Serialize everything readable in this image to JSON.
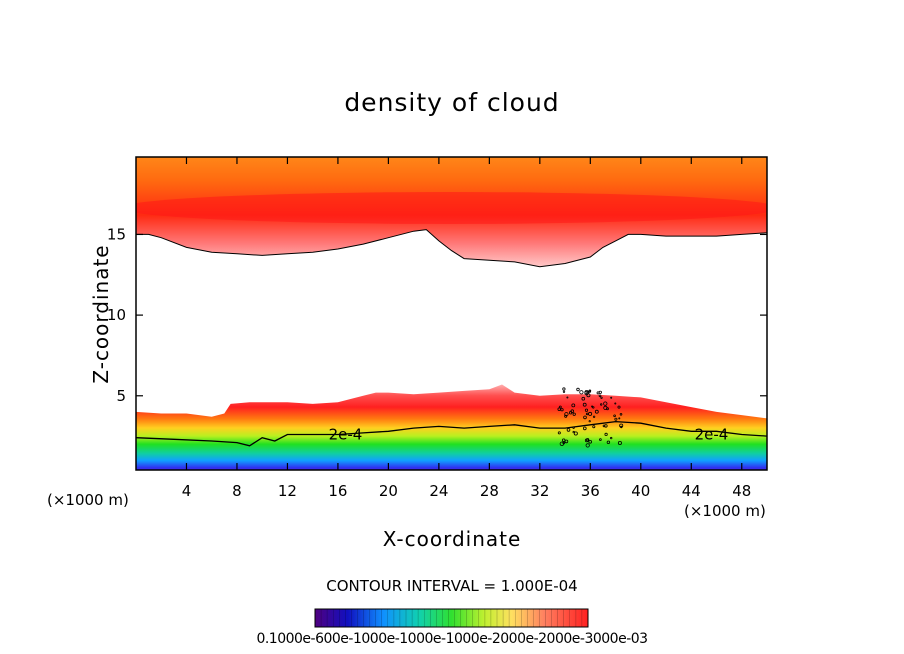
{
  "chart_data": {
    "type": "heatmap",
    "title": "density of cloud",
    "xlabel": "X-coordinate",
    "ylabel": "Z-coordinate",
    "x_unit_left": "(×1000 m)",
    "x_unit_right": "(×1000 m)",
    "x_ticks": [
      4,
      8,
      12,
      16,
      20,
      24,
      28,
      32,
      36,
      40,
      44,
      48
    ],
    "y_ticks": [
      5,
      10,
      15
    ],
    "xlim": [
      0,
      50
    ],
    "ylim": [
      0.4,
      19.8
    ],
    "contour_labels": [
      {
        "text": "2e-4",
        "x": 16.6,
        "z": 2.6
      },
      {
        "text": "2e-4",
        "x": 45.6,
        "z": 2.6
      }
    ],
    "contour_interval": "CONTOUR INTERVAL = 1.000E-04",
    "colorbar_label": "0.1000e-600e-1000e-1000e-1000e-2000e-2000e-3000e-03",
    "upper_layer_base": [
      [
        0,
        15.0
      ],
      [
        1,
        15.0
      ],
      [
        2,
        14.8
      ],
      [
        4,
        14.2
      ],
      [
        6,
        13.9
      ],
      [
        8,
        13.8
      ],
      [
        10,
        13.7
      ],
      [
        12,
        13.8
      ],
      [
        14,
        13.9
      ],
      [
        16,
        14.1
      ],
      [
        18,
        14.4
      ],
      [
        20,
        14.8
      ],
      [
        22,
        15.2
      ],
      [
        23,
        15.3
      ],
      [
        24,
        14.6
      ],
      [
        25,
        14.0
      ],
      [
        26,
        13.5
      ],
      [
        28,
        13.4
      ],
      [
        30,
        13.3
      ],
      [
        32,
        13.0
      ],
      [
        34,
        13.2
      ],
      [
        36,
        13.6
      ],
      [
        37,
        14.2
      ],
      [
        38,
        14.6
      ],
      [
        39,
        15.0
      ],
      [
        40,
        15.0
      ],
      [
        42,
        14.9
      ],
      [
        44,
        14.9
      ],
      [
        46,
        14.9
      ],
      [
        48,
        15.0
      ],
      [
        50,
        15.1
      ]
    ],
    "lower_layer_top": [
      [
        0,
        4.0
      ],
      [
        2,
        3.9
      ],
      [
        4,
        3.9
      ],
      [
        6,
        3.7
      ],
      [
        7,
        3.9
      ],
      [
        7.5,
        4.5
      ],
      [
        9,
        4.6
      ],
      [
        10,
        4.6
      ],
      [
        12,
        4.6
      ],
      [
        14,
        4.5
      ],
      [
        16,
        4.6
      ],
      [
        18,
        5.0
      ],
      [
        19,
        5.2
      ],
      [
        20,
        5.2
      ],
      [
        22,
        5.1
      ],
      [
        24,
        5.2
      ],
      [
        26,
        5.3
      ],
      [
        28,
        5.4
      ],
      [
        29,
        5.7
      ],
      [
        30,
        5.2
      ],
      [
        32,
        5.0
      ],
      [
        34,
        5.1
      ],
      [
        36,
        5.1
      ],
      [
        38,
        5.0
      ],
      [
        40,
        4.9
      ],
      [
        42,
        4.6
      ],
      [
        44,
        4.3
      ],
      [
        46,
        4.0
      ],
      [
        48,
        3.8
      ],
      [
        50,
        3.6
      ]
    ],
    "contour_2e4": [
      [
        0,
        2.4
      ],
      [
        3,
        2.3
      ],
      [
        6,
        2.2
      ],
      [
        8,
        2.1
      ],
      [
        9,
        1.9
      ],
      [
        10,
        2.4
      ],
      [
        11,
        2.2
      ],
      [
        12,
        2.6
      ],
      [
        14,
        2.6
      ],
      [
        16,
        2.6
      ],
      [
        18,
        2.7
      ],
      [
        20,
        2.8
      ],
      [
        22,
        3.0
      ],
      [
        24,
        3.1
      ],
      [
        26,
        3.0
      ],
      [
        28,
        3.1
      ],
      [
        30,
        3.2
      ],
      [
        32,
        3.0
      ],
      [
        34,
        3.0
      ],
      [
        36,
        3.2
      ],
      [
        38,
        3.4
      ],
      [
        40,
        3.3
      ],
      [
        42,
        3.0
      ],
      [
        44,
        2.8
      ],
      [
        46,
        2.8
      ],
      [
        48,
        2.6
      ],
      [
        50,
        2.5
      ]
    ]
  }
}
